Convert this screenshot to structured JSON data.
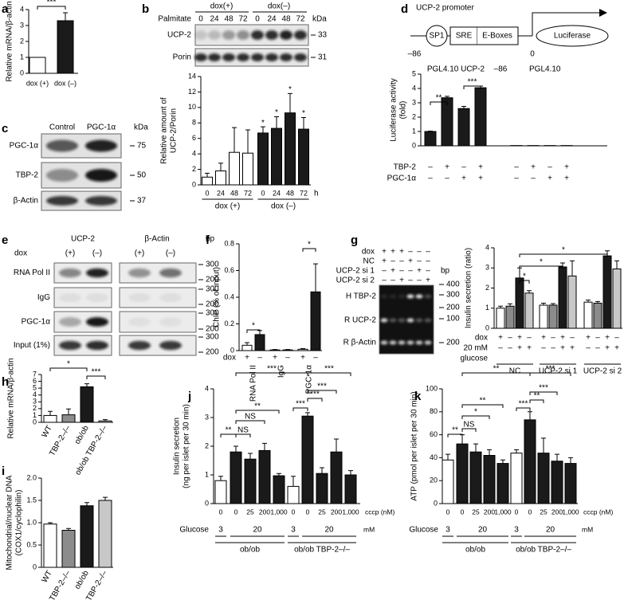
{
  "chart_data": [
    {
      "type": "bar",
      "panel": "a",
      "ylabel": [
        "Relative mRNA/β-actin"
      ],
      "ylim": [
        0,
        4
      ],
      "yticks": [
        0,
        1,
        2,
        3,
        4
      ],
      "categories": [
        "dox (+)",
        "dox (–)"
      ],
      "values": [
        1,
        3.3
      ],
      "errors": [
        null,
        0.5
      ],
      "colors": [
        "#ffffff",
        "#1a1a1a"
      ],
      "annotations": [
        "***"
      ]
    },
    {
      "type": "bar",
      "panel": "b",
      "ylabel": [
        "Relative amount of",
        "UCP-2/Porin"
      ],
      "ylim": [
        0,
        14
      ],
      "yticks": [
        0,
        2,
        4,
        6,
        8,
        10,
        12,
        14
      ],
      "categories": [
        "0",
        "24",
        "48",
        "72",
        "0",
        "24",
        "48",
        "72"
      ],
      "x_unit": "h",
      "groups": [
        "dox (+)",
        "dox (–)"
      ],
      "values": [
        1,
        1.8,
        4.2,
        4.1,
        6.7,
        7.3,
        9.3,
        7.2
      ],
      "errors": [
        0.5,
        1,
        3.2,
        3,
        0.8,
        1.5,
        2.5,
        1.5
      ],
      "colors": [
        "#ffffff",
        "#ffffff",
        "#ffffff",
        "#ffffff",
        "#1a1a1a",
        "#1a1a1a",
        "#1a1a1a",
        "#1a1a1a"
      ],
      "annotations": [
        "*",
        "*",
        "*",
        "*"
      ]
    },
    {
      "type": "bar",
      "panel": "d",
      "ylabel": [
        "Luciferase activity",
        "(fold)"
      ],
      "ylim": [
        0,
        5
      ],
      "yticks": [
        0,
        1,
        2,
        3,
        4,
        5
      ],
      "headers": [
        "PGL4.10 UCP-2",
        "–86",
        "PGL4.10"
      ],
      "values": [
        1,
        3.35,
        2.6,
        4.05,
        0.02,
        0.02,
        0.02,
        0.02
      ],
      "errors": [
        0.03,
        0.1,
        0.15,
        0.12,
        null,
        null,
        null,
        null
      ],
      "colors": [
        "#1a1a1a",
        "#1a1a1a",
        "#1a1a1a",
        "#1a1a1a",
        "#1a1a1a",
        "#1a1a1a",
        "#1a1a1a",
        "#1a1a1a"
      ],
      "rows": [
        {
          "label": "TBP-2",
          "values": [
            "–",
            "+",
            "–",
            "+",
            "–",
            "+",
            "–",
            "+"
          ]
        },
        {
          "label": "PGC-1α",
          "values": [
            "–",
            "–",
            "+",
            "+",
            "–",
            "–",
            "+",
            "+"
          ]
        }
      ],
      "annotations": [
        "**",
        "***"
      ]
    },
    {
      "type": "bar",
      "panel": "f",
      "ylabel": [
        "ChIP (% of input)"
      ],
      "ylim": [
        0,
        0.8
      ],
      "yticks": [
        0,
        0.2,
        0.4,
        0.6,
        0.8
      ],
      "groups": [
        "RNA Pol II",
        "IgG",
        "PGC-1α"
      ],
      "values": [
        0.04,
        0.12,
        0.005,
        0.005,
        0.01,
        0.44
      ],
      "errors": [
        0.02,
        0.03,
        0.003,
        0.003,
        0.005,
        0.21
      ],
      "colors": [
        "#ffffff",
        "#1a1a1a",
        "#ffffff",
        "#1a1a1a",
        "#ffffff",
        "#1a1a1a"
      ],
      "rows": [
        {
          "label": "dox",
          "values": [
            "+",
            "–",
            "+",
            "–",
            "+",
            "–"
          ]
        }
      ],
      "annotations": [
        "*",
        "*"
      ]
    },
    {
      "type": "bar",
      "panel": "g",
      "ylabel": [
        "Insulin secretion (ratio)"
      ],
      "ylim": [
        0,
        4
      ],
      "yticks": [
        0,
        1,
        2,
        3,
        4
      ],
      "groups": [
        "NC",
        "UCP-2 si 1",
        "UCP-2 si 2"
      ],
      "values": [
        1.0,
        1.1,
        2.5,
        1.75,
        1.15,
        1.15,
        3.05,
        2.6,
        1.3,
        1.25,
        3.6,
        2.95
      ],
      "errors": [
        0.1,
        0.12,
        0.5,
        0.12,
        0.1,
        0.08,
        0.2,
        0.75,
        0.1,
        0.08,
        0.25,
        0.4
      ],
      "colors": [
        "#ffffff",
        "#8c8c8c",
        "#1a1a1a",
        "#c8c8c8",
        "#ffffff",
        "#8c8c8c",
        "#1a1a1a",
        "#c8c8c8",
        "#ffffff",
        "#8c8c8c",
        "#1a1a1a",
        "#c8c8c8"
      ],
      "rows": [
        {
          "label_lines": [
            "dox"
          ],
          "values": [
            "+",
            "–",
            "+",
            "–",
            "+",
            "–",
            "+",
            "–",
            "+",
            "–",
            "+",
            "–"
          ]
        },
        {
          "label_lines": [
            "20 mM",
            "glucose"
          ],
          "values": [
            "–",
            "–",
            "+",
            "+",
            "–",
            "–",
            "+",
            "+",
            "–",
            "–",
            "+",
            "+"
          ]
        }
      ],
      "annotations": [
        "*",
        "*",
        "*"
      ]
    },
    {
      "type": "bar",
      "panel": "h",
      "ylabel": [
        "Relative mRNA/β-actin"
      ],
      "ylim": [
        0,
        7
      ],
      "yticks": [
        0,
        1,
        2,
        3,
        4,
        5,
        6,
        7
      ],
      "categories": [
        "WT",
        "TBP-2–/–",
        "ob/ob",
        "ob/ob TBP-2–/–"
      ],
      "values": [
        1.0,
        1.1,
        5.2,
        0.2
      ],
      "errors": [
        0.6,
        0.85,
        0.45,
        0.2
      ],
      "colors": [
        "#ffffff",
        "#8c8c8c",
        "#1a1a1a",
        "#c8c8c8"
      ],
      "annotations": [
        "*",
        "***"
      ]
    },
    {
      "type": "bar",
      "panel": "i",
      "ylabel": [
        "Mitochondrial/nuclear DNA",
        "(COX1/cyclophilin)"
      ],
      "ylim": [
        0,
        2
      ],
      "yticks": [
        0,
        0.5,
        {
          "value": 1,
          "label": "1.0"
        },
        1.5,
        {
          "value": 2,
          "label": "2.0"
        }
      ],
      "categories": [
        "WT",
        "TBP-2–/–",
        "ob/ob",
        "ob/ob TBP-2–/–"
      ],
      "values": [
        0.97,
        0.83,
        1.38,
        1.5
      ],
      "errors": [
        0.03,
        0.04,
        0.07,
        0.07
      ],
      "colors": [
        "#ffffff",
        "#8c8c8c",
        "#1a1a1a",
        "#c8c8c8"
      ],
      "annotations": []
    },
    {
      "type": "bar",
      "panel": "j",
      "ylabel": [
        "Insulin secretion",
        "(ng per islet per 30 min)"
      ],
      "ylim": [
        0,
        4
      ],
      "yticks": [
        0,
        1,
        2,
        3,
        4
      ],
      "categories": [
        "0",
        "0",
        "25",
        "200",
        "1,000",
        "0",
        "0",
        "25",
        "200",
        "1,000"
      ],
      "x_unit": "cccp (nM)",
      "glucose": {
        "label": "Glucose",
        "values": [
          "3",
          "20",
          "3",
          "20"
        ],
        "unit": "mM"
      },
      "groups": [
        "ob/ob",
        "ob/ob TBP-2–/–"
      ],
      "values": [
        0.8,
        1.8,
        1.55,
        1.85,
        0.97,
        0.6,
        3.05,
        1.05,
        1.8,
        1.0
      ],
      "errors": [
        0.15,
        0.2,
        0.2,
        0.25,
        0.08,
        0.35,
        0.12,
        0.2,
        0.45,
        0.15
      ],
      "colors": [
        "#ffffff",
        "#1a1a1a",
        "#1a1a1a",
        "#1a1a1a",
        "#1a1a1a",
        "#ffffff",
        "#1a1a1a",
        "#1a1a1a",
        "#1a1a1a",
        "#1a1a1a"
      ],
      "annotations": [
        "***",
        "***",
        "**",
        "NS",
        "**",
        "NS",
        "***",
        "***",
        "***"
      ]
    },
    {
      "type": "bar",
      "panel": "k",
      "ylabel": [
        "ATP (pmol per islet per 30 min)"
      ],
      "ylim": [
        0,
        100
      ],
      "yticks": [
        0,
        20,
        40,
        60,
        80,
        100
      ],
      "categories": [
        "0",
        "0",
        "25",
        "200",
        "1,000",
        "0",
        "0",
        "25",
        "200",
        "1,000"
      ],
      "x_unit": "cccp (nM)",
      "glucose": {
        "label": "Glucose",
        "values": [
          "3",
          "20",
          "3",
          "20"
        ],
        "unit": "mM"
      },
      "groups": [
        "ob/ob",
        "ob/ob TBP-2–/–"
      ],
      "values": [
        38,
        52,
        45,
        42,
        35,
        44,
        73,
        44,
        37,
        35
      ],
      "errors": [
        5,
        8,
        7,
        5,
        3,
        3,
        7,
        13,
        6,
        5
      ],
      "colors": [
        "#ffffff",
        "#1a1a1a",
        "#1a1a1a",
        "#1a1a1a",
        "#1a1a1a",
        "#ffffff",
        "#1a1a1a",
        "#1a1a1a",
        "#1a1a1a",
        "#1a1a1a"
      ],
      "annotations": [
        "**",
        "***",
        "**",
        "*",
        "NS",
        "**",
        "***",
        "**",
        "***"
      ]
    }
  ],
  "gels": {
    "b": {
      "treatment": "Palmitate",
      "groups": [
        "dox(+)",
        "dox(–)"
      ],
      "lanes": [
        "0",
        "24",
        "48",
        "72",
        "0",
        "24",
        "48",
        "72"
      ],
      "unit": "kDa",
      "rows": [
        {
          "label": "UCP-2",
          "size": "33"
        },
        {
          "label": "Porin",
          "size": "31"
        }
      ]
    },
    "c": {
      "panel": "c",
      "lanes": [
        "Control",
        "PGC-1α"
      ],
      "unit": "kDa",
      "rows": [
        {
          "label": "PGC-1α",
          "size": "75"
        },
        {
          "label": "TBP-2",
          "size": "50"
        },
        {
          "label": "β-Actin",
          "size": "37"
        }
      ]
    },
    "e": {
      "panel": "e",
      "treatment": "dox",
      "groups": [
        "UCP-2",
        "β-Actin"
      ],
      "lanes": [
        "(+)",
        "(–)",
        "(+)",
        "(–)"
      ],
      "unit": "bp",
      "rows": [
        {
          "label": "RNA Pol II",
          "sizes": [
            "300",
            "200"
          ]
        },
        {
          "label": "IgG",
          "sizes": [
            "300",
            "200"
          ]
        },
        {
          "label": "PGC-1α",
          "sizes": [
            "300",
            "200"
          ]
        },
        {
          "label": "Input (1%)",
          "sizes": [
            "300",
            "200"
          ]
        }
      ]
    },
    "g": {
      "conditions": [
        {
          "label": "dox",
          "values": [
            "+",
            "+",
            "+",
            "–",
            "–",
            "–"
          ]
        },
        {
          "label": "NC",
          "values": [
            "+",
            "–",
            "–",
            "+",
            "–",
            "–"
          ]
        },
        {
          "label": "UCP-2 si 1",
          "values": [
            "–",
            "+",
            "–",
            "–",
            "+",
            "–"
          ]
        },
        {
          "label": "UCP-2 si 2",
          "values": [
            "–",
            "–",
            "+",
            "–",
            "–",
            "+"
          ]
        }
      ],
      "unit": "bp",
      "sizes": [
        "400",
        "300",
        "200",
        "100",
        "200"
      ],
      "rows": [
        "H TBP-2",
        "R UCP-2",
        "R β-Actin"
      ]
    }
  },
  "diagram": {
    "title": "UCP-2 promoter",
    "elements": [
      "SP1",
      "SRE",
      "E-Boxes",
      "Luciferase"
    ],
    "positions": [
      "–86",
      "0"
    ]
  }
}
